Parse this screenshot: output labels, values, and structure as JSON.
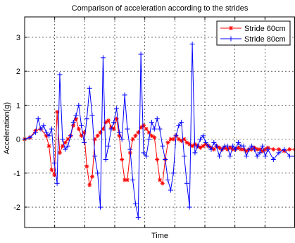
{
  "chart_data": {
    "type": "line",
    "title": "Comparison of acceleration according to the strides",
    "xlabel": "Time",
    "ylabel": "Acceleration(g)",
    "ylim": [
      -2.6,
      3.6
    ],
    "xlim": [
      0,
      100
    ],
    "yticks": [
      "-2",
      "-1",
      "0",
      "1",
      "2",
      "3"
    ],
    "ytick_values": [
      -2,
      -1,
      0,
      1,
      2,
      3
    ],
    "xticks_count": 9,
    "grid": true,
    "legend_position": "top-right",
    "series": [
      {
        "name": "Stride 60cm",
        "color": "#ff0000",
        "marker": "asterisk",
        "x": [
          0,
          2,
          4,
          6,
          8,
          9,
          10,
          11,
          12,
          13,
          14,
          15,
          16,
          17,
          18,
          19,
          20,
          21,
          22,
          23,
          24,
          25,
          26,
          27,
          28,
          29,
          30,
          31,
          32,
          33,
          34,
          35,
          36,
          37,
          38,
          39,
          40,
          41,
          42,
          43,
          44,
          45,
          46,
          47,
          48,
          49,
          50,
          51,
          52,
          53,
          54,
          55,
          56,
          57,
          58,
          59,
          60,
          61,
          62,
          63,
          64,
          65,
          66,
          67,
          68,
          69,
          70,
          71,
          72,
          73,
          74,
          75,
          76,
          77,
          78,
          79,
          80,
          81,
          82,
          83,
          84,
          85,
          86,
          87,
          88,
          89,
          90,
          92,
          94,
          96,
          98,
          100
        ],
        "values": [
          0,
          0.05,
          0.25,
          0.3,
          0.1,
          -0.2,
          -0.9,
          -1.05,
          0.8,
          -0.4,
          -0.2,
          -0.1,
          0.0,
          0.1,
          0.4,
          0.6,
          0.3,
          0.1,
          0.2,
          -0.8,
          -1.35,
          -1.1,
          0.0,
          0.1,
          0.2,
          0.3,
          0.5,
          0.55,
          0.35,
          0.3,
          0.6,
          0.1,
          -0.6,
          -1.2,
          -1.2,
          -0.4,
          0.0,
          0.1,
          0.2,
          0.35,
          0.4,
          0.3,
          0.2,
          0.1,
          0.05,
          -0.6,
          -1.2,
          -1.3,
          -0.6,
          -0.1,
          0.0,
          0.0,
          0.1,
          0.0,
          -0.05,
          0.0,
          -0.1,
          -0.15,
          -0.2,
          -0.15,
          -0.2,
          -0.25,
          -0.2,
          -0.15,
          -0.2,
          -0.25,
          -0.3,
          -0.2,
          -0.25,
          -0.3,
          -0.25,
          -0.3,
          -0.25,
          -0.3,
          -0.3,
          -0.25,
          -0.3,
          -0.3,
          -0.35,
          -0.3,
          -0.3,
          -0.25,
          -0.3,
          -0.3,
          -0.35,
          -0.3,
          -0.25,
          -0.3,
          -0.3,
          -0.35,
          -0.3,
          -0.3
        ]
      },
      {
        "name": "Stride 80cm",
        "color": "#0000ff",
        "marker": "plus",
        "x": [
          0,
          2,
          4,
          5,
          6,
          7,
          8,
          9,
          10,
          11,
          12,
          13,
          14,
          15,
          16,
          17,
          18,
          19,
          20,
          21,
          22,
          23,
          24,
          25,
          26,
          27,
          28,
          29,
          30,
          31,
          32,
          33,
          34,
          35,
          36,
          37,
          38,
          39,
          40,
          41,
          42,
          43,
          44,
          45,
          46,
          47,
          48,
          49,
          50,
          51,
          52,
          53,
          54,
          55,
          56,
          57,
          58,
          59,
          60,
          61,
          62,
          63,
          64,
          65,
          66,
          67,
          68,
          69,
          70,
          71,
          72,
          73,
          74,
          75,
          76,
          77,
          78,
          79,
          80,
          81,
          82,
          83,
          84,
          85,
          86,
          87,
          88,
          89,
          90,
          92,
          94,
          96,
          98,
          100
        ],
        "values": [
          0,
          0.05,
          0.2,
          0.6,
          0.3,
          0.4,
          0.2,
          0.1,
          0.3,
          -0.7,
          -1.3,
          1.9,
          0.0,
          -0.3,
          -0.2,
          0.1,
          0.5,
          0.7,
          1.0,
          0.4,
          -0.1,
          0.6,
          1.5,
          0.7,
          -0.5,
          -1.0,
          -2.0,
          2.4,
          -0.6,
          -0.2,
          0.3,
          0.5,
          0.9,
          0.2,
          0.0,
          1.3,
          0.3,
          -0.3,
          -1.2,
          -1.9,
          -2.3,
          2.5,
          -0.4,
          -0.5,
          0.0,
          0.5,
          0.3,
          0.6,
          0.3,
          -0.2,
          -0.6,
          -1.2,
          -1.5,
          -1.0,
          0.1,
          0.4,
          0.5,
          -0.5,
          -1.3,
          -2.0,
          2.8,
          -0.4,
          -0.2,
          0.0,
          0.1,
          -0.1,
          -0.2,
          -0.3,
          -0.1,
          -0.2,
          -0.5,
          -0.3,
          -0.2,
          -0.2,
          -0.5,
          -0.2,
          -0.3,
          -0.1,
          -0.2,
          -0.2,
          -0.5,
          -0.3,
          -0.2,
          -0.3,
          -0.5,
          -0.4,
          -0.2,
          -0.5,
          -0.3,
          -0.6,
          -0.4,
          -0.3,
          -0.5,
          -0.5
        ]
      }
    ]
  }
}
